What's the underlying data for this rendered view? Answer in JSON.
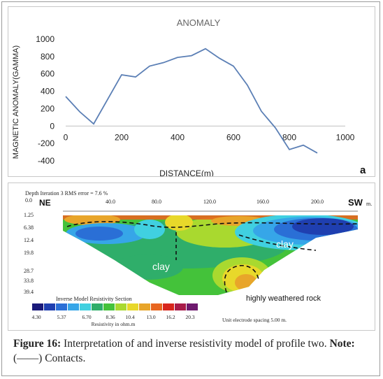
{
  "chart_data": {
    "type": "line",
    "title": "ANOMALY",
    "xlabel": "DISTANCE(m)",
    "ylabel": "MAGNETIC ANOMALY(GAMMA)",
    "xlim": [
      0,
      1000
    ],
    "ylim": [
      -400,
      1000
    ],
    "x_ticks": [
      "0",
      "200",
      "400",
      "600",
      "800",
      "1000"
    ],
    "y_ticks": [
      "1000",
      "800",
      "600",
      "400",
      "200",
      "0",
      "-200",
      "-400"
    ],
    "grid": false,
    "line_color": "#5b7fb5",
    "panel_label": "a",
    "x": [
      0,
      50,
      100,
      200,
      250,
      300,
      350,
      400,
      450,
      500,
      550,
      600,
      650,
      700,
      750,
      800,
      850,
      900
    ],
    "y": [
      340,
      165,
      25,
      590,
      565,
      690,
      730,
      790,
      810,
      890,
      780,
      690,
      470,
      170,
      -20,
      -270,
      -220,
      -310
    ]
  },
  "section": {
    "header_line1": "Depth   Iteration 3 RMS error = 7.6 %",
    "header_line2": "0.0",
    "distance_ticks": [
      "40.0",
      "80.0",
      "120.0",
      "160.0",
      "200.0"
    ],
    "unit_m": "m.",
    "depths": [
      "1.25",
      "6.38",
      "12.4",
      "19.8",
      "28.7",
      "33.8",
      "39.4"
    ],
    "label_ne": "NE",
    "label_sw": "SW",
    "label_clay_1": "clay",
    "label_clay_2": "clay",
    "label_rock": "highly weathered rock",
    "legend_title": "Inverse Model Resistivity Section",
    "legend_values": [
      "4.30",
      "5.37",
      "6.70",
      "8.36",
      "10.4",
      "13.0",
      "16.2",
      "20.3"
    ],
    "legend_unit": "Resistivity in ohm.m",
    "electrode_spacing": "Unit electrode spacing 5.00 m.",
    "legend_colors": [
      "#1a1a7a",
      "#1f3fb0",
      "#2a6fd6",
      "#36a6e8",
      "#40d0e0",
      "#2fae6a",
      "#44c23a",
      "#a9d92f",
      "#e8d82a",
      "#e8a52a",
      "#e8661f",
      "#d8261c",
      "#a81c4a",
      "#6e1a6e"
    ]
  },
  "caption": {
    "label": "Figure 16:",
    "text": " Interpretation of and inverse resistivity model of profile two. ",
    "note_label": "Note:",
    "note_text": " (––––) Contacts."
  }
}
